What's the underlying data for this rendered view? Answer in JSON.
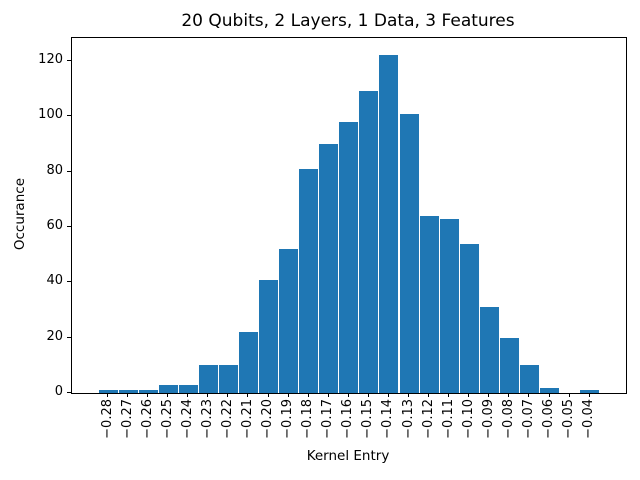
{
  "figure": {
    "background": "#ffffff",
    "frame_color": "#000000",
    "text_color": "#000000"
  },
  "chart_data": {
    "type": "bar",
    "title": "20 Qubits, 2 Layers, 1 Data, 3 Features",
    "xlabel": "Kernel Entry",
    "ylabel": "Occurance",
    "categories": [
      "−0.28",
      "−0.27",
      "−0.26",
      "−0.25",
      "−0.24",
      "−0.23",
      "−0.22",
      "−0.21",
      "−0.20",
      "−0.19",
      "−0.18",
      "−0.17",
      "−0.16",
      "−0.15",
      "−0.14",
      "−0.13",
      "−0.12",
      "−0.11",
      "−0.10",
      "−0.09",
      "−0.08",
      "−0.07",
      "−0.06",
      "−0.05",
      "−0.04"
    ],
    "values": [
      1,
      1,
      1,
      3,
      3,
      10,
      10,
      22,
      41,
      52,
      81,
      90,
      98,
      109,
      122,
      101,
      64,
      63,
      54,
      31,
      20,
      10,
      2,
      0,
      1
    ],
    "yticks": [
      0,
      20,
      40,
      60,
      80,
      100,
      120
    ],
    "ylim": [
      0,
      128.3
    ],
    "bar_color": "#1f77b4",
    "grid": false,
    "legend_position": "none"
  }
}
